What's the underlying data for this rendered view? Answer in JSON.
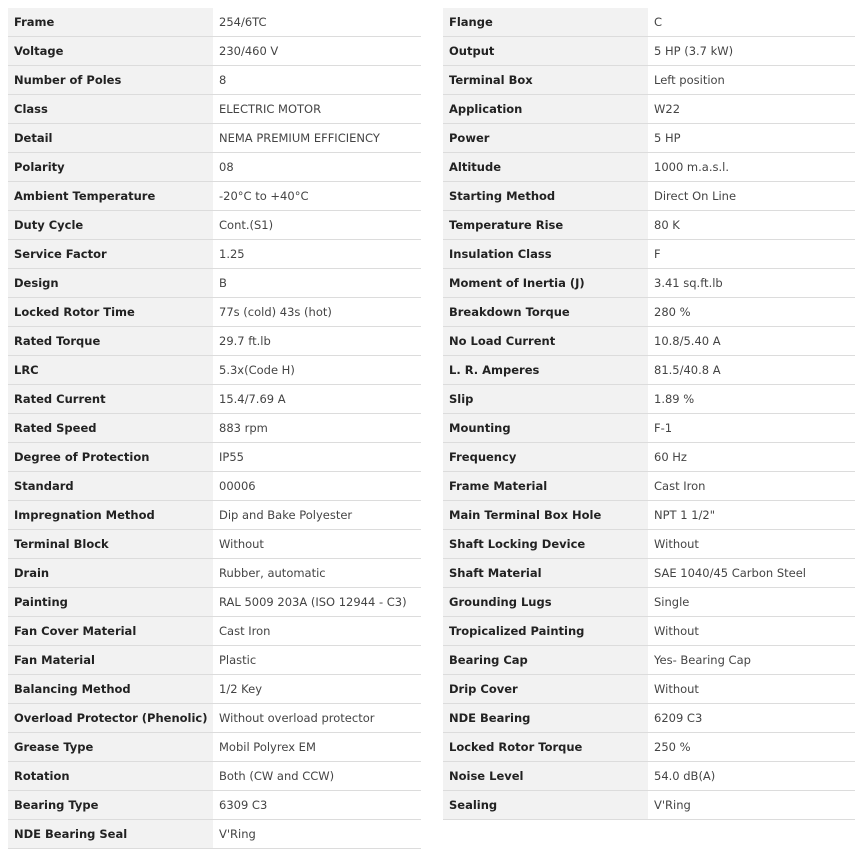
{
  "left": {
    "rows": [
      [
        "Frame",
        "254/6TC"
      ],
      [
        "Voltage",
        "230/460 V"
      ],
      [
        "Number of Poles",
        "8"
      ],
      [
        "Class",
        "ELECTRIC MOTOR"
      ],
      [
        "Detail",
        "NEMA PREMIUM EFFICIENCY"
      ],
      [
        "Polarity",
        "08"
      ],
      [
        "Ambient Temperature",
        "-20°C to +40°C"
      ],
      [
        "Duty Cycle",
        "Cont.(S1)"
      ],
      [
        "Service Factor",
        "1.25"
      ],
      [
        "Design",
        "B"
      ],
      [
        "Locked Rotor Time",
        "77s (cold) 43s (hot)"
      ],
      [
        "Rated Torque",
        "29.7 ft.lb"
      ],
      [
        "LRC",
        "5.3x(Code H)"
      ],
      [
        "Rated Current",
        "15.4/7.69 A"
      ],
      [
        "Rated Speed",
        "883 rpm"
      ],
      [
        "Degree of Protection",
        "IP55"
      ],
      [
        "Standard",
        "00006"
      ],
      [
        "Impregnation Method",
        "Dip and Bake Polyester"
      ],
      [
        "Terminal Block",
        "Without"
      ],
      [
        "Drain",
        "Rubber, automatic"
      ],
      [
        "Painting",
        "RAL 5009 203A (ISO 12944 - C3)"
      ],
      [
        "Fan Cover Material",
        "Cast Iron"
      ],
      [
        "Fan Material",
        "Plastic"
      ],
      [
        "Balancing Method",
        "1/2 Key"
      ],
      [
        "Overload Protector (Phenolic)",
        "Without overload protector"
      ],
      [
        "Grease Type",
        "Mobil Polyrex EM"
      ],
      [
        "Rotation",
        "Both (CW and CCW)"
      ],
      [
        "Bearing Type",
        "6309 C3"
      ],
      [
        "NDE Bearing Seal",
        "V'Ring"
      ]
    ]
  },
  "right": {
    "rows": [
      [
        "Flange",
        "C"
      ],
      [
        "Output",
        "5 HP (3.7 kW)"
      ],
      [
        "Terminal Box",
        "Left position"
      ],
      [
        "Application",
        "W22"
      ],
      [
        "Power",
        "5 HP"
      ],
      [
        "Altitude",
        "1000 m.a.s.l."
      ],
      [
        "Starting Method",
        "Direct On Line"
      ],
      [
        "Temperature Rise",
        "80 K"
      ],
      [
        "Insulation Class",
        "F"
      ],
      [
        "Moment of Inertia (J)",
        "3.41 sq.ft.lb"
      ],
      [
        "Breakdown Torque",
        "280 %"
      ],
      [
        "No Load Current",
        "10.8/5.40 A"
      ],
      [
        "L. R. Amperes",
        "81.5/40.8 A"
      ],
      [
        "Slip",
        "1.89 %"
      ],
      [
        "Mounting",
        "F-1"
      ],
      [
        "Frequency",
        "60 Hz"
      ],
      [
        "Frame Material",
        "Cast Iron"
      ],
      [
        "Main Terminal Box Hole",
        "NPT 1 1/2\""
      ],
      [
        "Shaft Locking Device",
        "Without"
      ],
      [
        "Shaft Material",
        "SAE 1040/45 Carbon Steel"
      ],
      [
        "Grounding Lugs",
        "Single"
      ],
      [
        "Tropicalized Painting",
        "Without"
      ],
      [
        "Bearing Cap",
        "Yes- Bearing Cap"
      ],
      [
        "Drip Cover",
        "Without"
      ],
      [
        "NDE Bearing",
        "6209 C3"
      ],
      [
        "Locked Rotor Torque",
        "250 %"
      ],
      [
        "Noise Level",
        "54.0 dB(A)"
      ],
      [
        "Sealing",
        "V'Ring"
      ]
    ]
  }
}
